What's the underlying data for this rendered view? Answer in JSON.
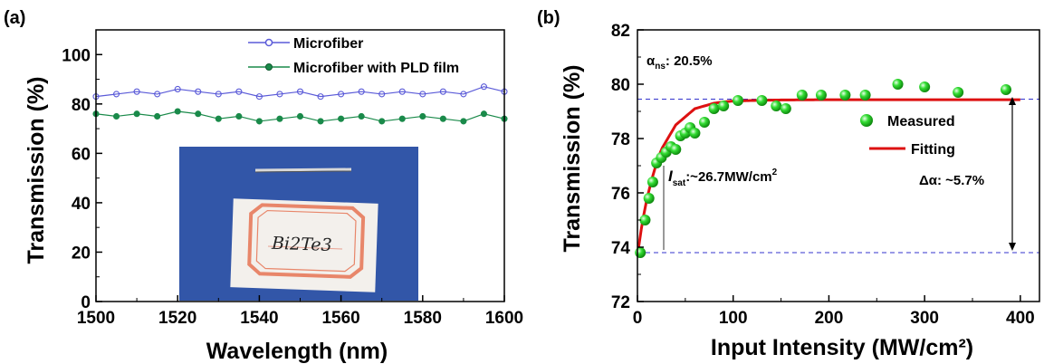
{
  "figure": {
    "panel_a_label": "(a)",
    "panel_b_label": "(b)"
  },
  "chart_data": [
    {
      "type": "line",
      "xlabel": "Wavelength (nm)",
      "ylabel": "Transmission (%)",
      "xlim": [
        1500,
        1600
      ],
      "ylim": [
        0,
        110
      ],
      "xticks": [
        1500,
        1520,
        1540,
        1560,
        1580,
        1600
      ],
      "yticks": [
        0,
        20,
        40,
        60,
        80,
        100
      ],
      "legend_position": "top-right",
      "series": [
        {
          "name": "Microfiber",
          "color": "#5a5ad8",
          "marker": "hollow-circle",
          "x": [
            1500,
            1505,
            1510,
            1515,
            1520,
            1525,
            1530,
            1535,
            1540,
            1545,
            1550,
            1555,
            1560,
            1565,
            1570,
            1575,
            1580,
            1585,
            1590,
            1595,
            1600
          ],
          "y": [
            83,
            84,
            85,
            84,
            86,
            85,
            84,
            85,
            83,
            84,
            85,
            83,
            84,
            85,
            84,
            85,
            84,
            85,
            84,
            87,
            85
          ]
        },
        {
          "name": "Microfiber with PLD film",
          "color": "#1a8a4a",
          "marker": "filled-circle",
          "x": [
            1500,
            1505,
            1510,
            1515,
            1520,
            1525,
            1530,
            1535,
            1540,
            1545,
            1550,
            1555,
            1560,
            1565,
            1570,
            1575,
            1580,
            1585,
            1590,
            1595,
            1600
          ],
          "y": [
            76,
            75,
            76,
            75,
            77,
            76,
            74,
            75,
            73,
            74,
            75,
            73,
            74,
            75,
            73,
            74,
            75,
            74,
            73,
            76,
            74
          ]
        }
      ],
      "inset": {
        "background": "#3256a8",
        "card_text": "Bi2Te3"
      }
    },
    {
      "type": "scatter",
      "xlabel": "Input Intensity (MW/cm²)",
      "ylabel": "Transmission (%)",
      "xlim": [
        0,
        420
      ],
      "ylim": [
        72,
        82
      ],
      "xticks": [
        0,
        100,
        200,
        300,
        400
      ],
      "yticks": [
        72,
        74,
        76,
        78,
        80,
        82
      ],
      "legend_position": "center-right",
      "series": [
        {
          "name": "Measured",
          "color": "#33dd33",
          "x": [
            3,
            8,
            12,
            16,
            20,
            25,
            30,
            35,
            40,
            45,
            50,
            55,
            60,
            70,
            80,
            90,
            105,
            130,
            145,
            155,
            172,
            192,
            217,
            238,
            272,
            300,
            335,
            385
          ],
          "y": [
            73.8,
            75.0,
            75.8,
            76.4,
            77.1,
            77.3,
            77.5,
            77.7,
            77.6,
            78.1,
            78.2,
            78.4,
            78.2,
            78.6,
            79.1,
            79.2,
            79.4,
            79.4,
            79.2,
            79.1,
            79.6,
            79.6,
            79.6,
            79.6,
            80.0,
            79.9,
            79.7,
            79.8
          ]
        },
        {
          "name": "Fitting",
          "color": "#dd1111",
          "x": [
            0,
            5,
            10,
            15,
            20,
            25,
            30,
            40,
            50,
            60,
            70,
            80,
            90,
            100,
            120,
            150,
            200,
            250,
            300,
            350,
            400
          ],
          "y": [
            73.7,
            74.9,
            75.8,
            76.5,
            77.1,
            77.6,
            77.9,
            78.5,
            78.8,
            79.1,
            79.2,
            79.3,
            79.35,
            79.38,
            79.4,
            79.42,
            79.43,
            79.43,
            79.43,
            79.43,
            79.43
          ]
        }
      ],
      "reference_lines": [
        79.45,
        73.8
      ],
      "annotations": {
        "alpha_ns": {
          "symbol": "α",
          "sub": "ns",
          "text": ": 20.5%"
        },
        "isat": {
          "symbol": "I",
          "sub": "sat",
          "text": ":~26.7MW/cm",
          "sup": "2"
        },
        "delta_alpha": {
          "text": "Δα: ~5.7%"
        }
      }
    }
  ]
}
